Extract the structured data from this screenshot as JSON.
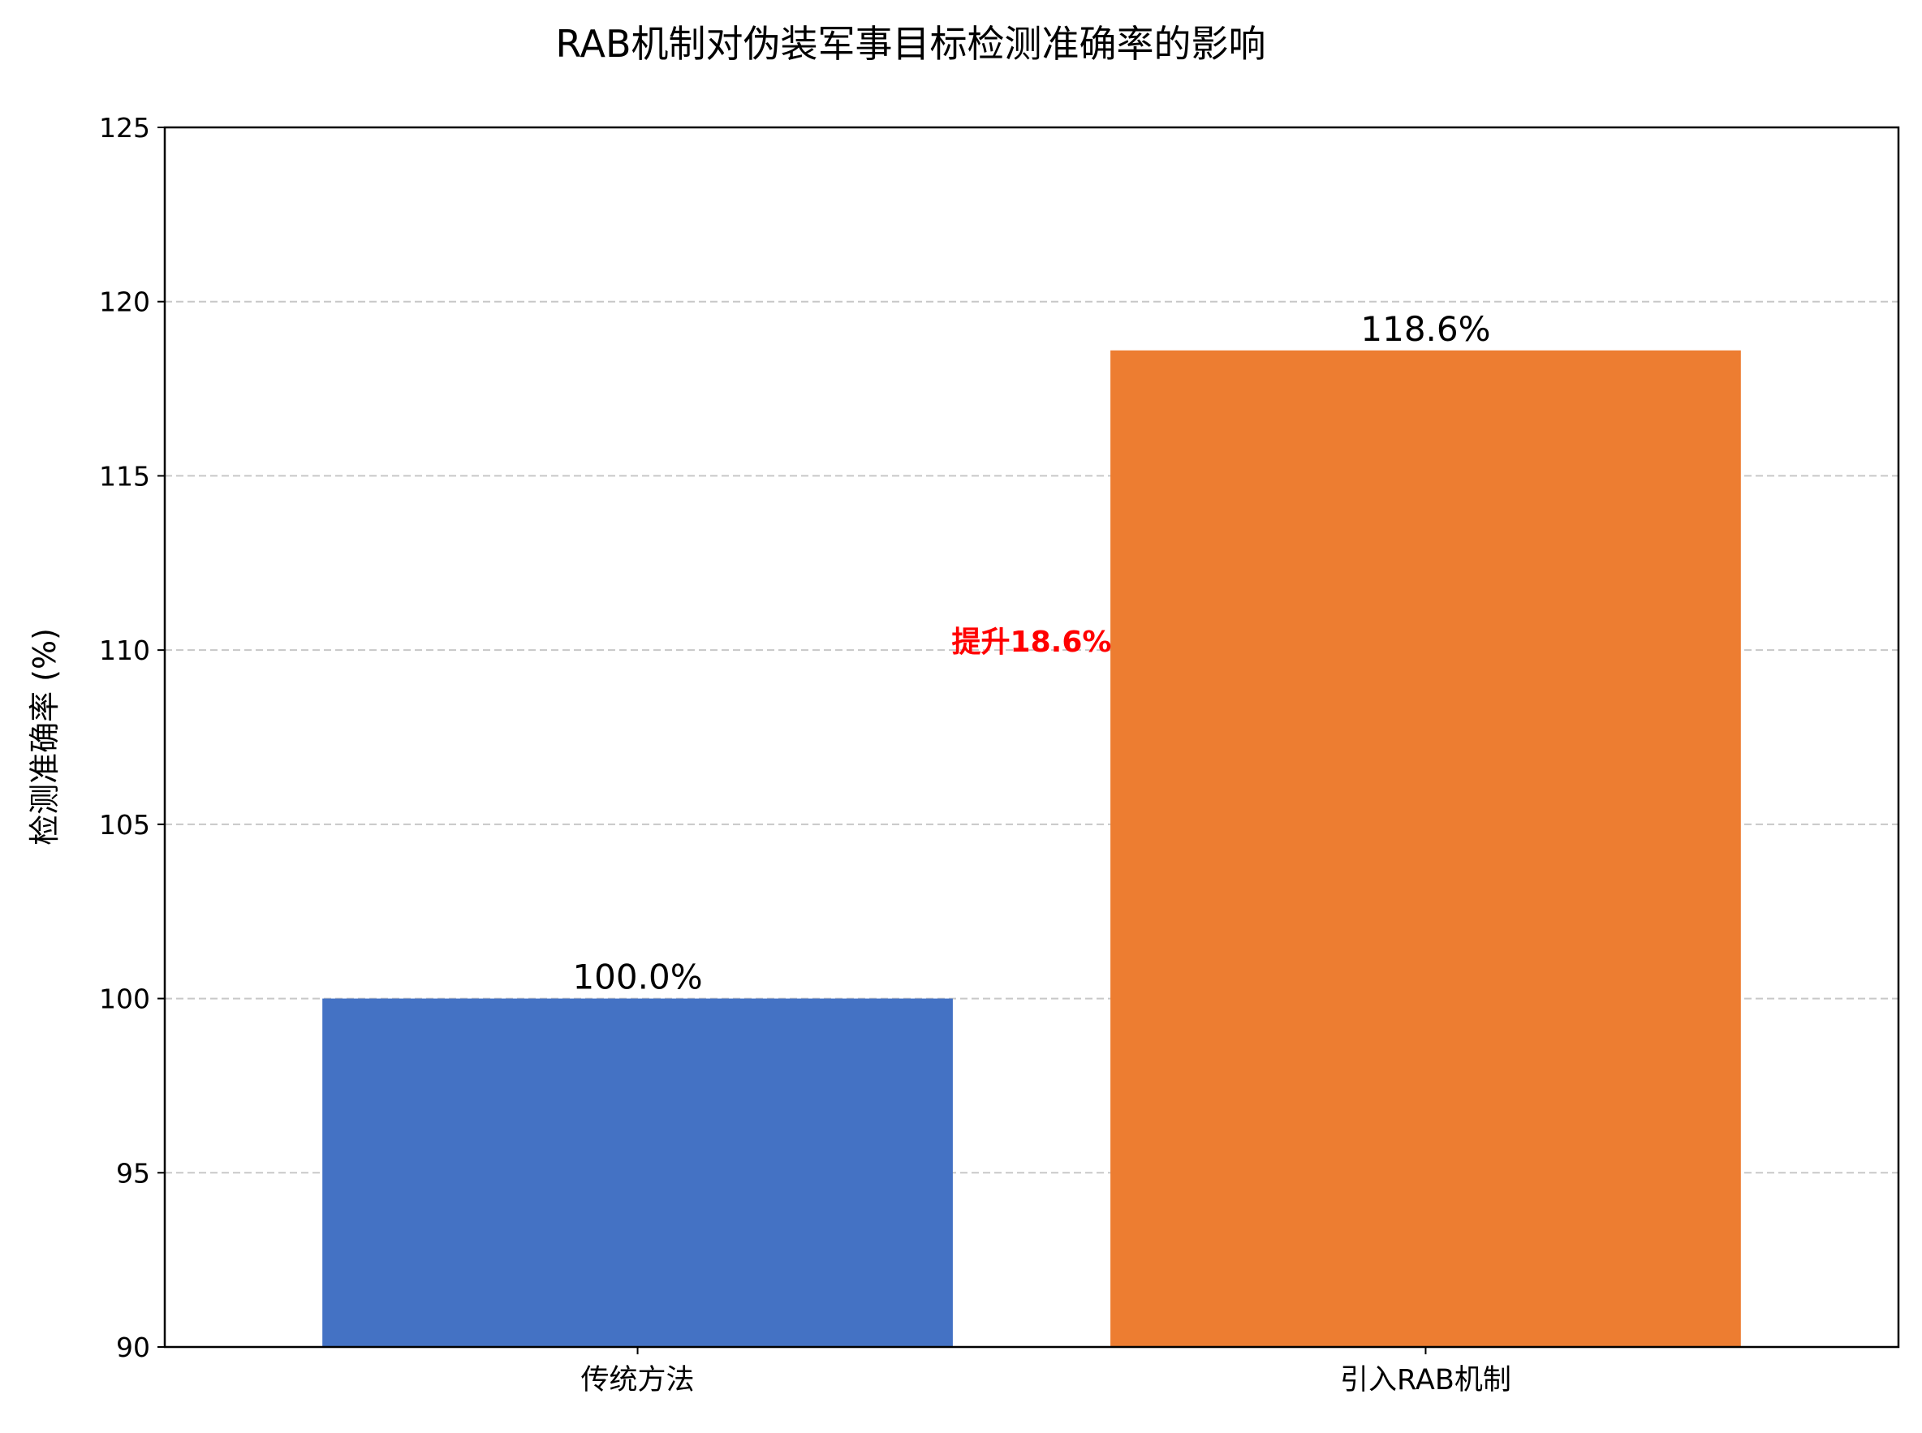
{
  "chart_data": {
    "type": "bar",
    "title": "RAB机制对伪装军事目标检测准确率的影响",
    "xlabel": "",
    "ylabel": "检测准确率 (%)",
    "categories": [
      "传统方法",
      "引入RAB机制"
    ],
    "values": [
      100.0,
      118.6
    ],
    "value_labels": [
      "100.0%",
      "118.6%"
    ],
    "colors": [
      "#4472C4",
      "#ED7D31"
    ],
    "ylim": [
      90,
      125
    ],
    "yticks": [
      "90",
      "95",
      "100",
      "105",
      "110",
      "115",
      "120",
      "125"
    ],
    "grid": "y-dashed",
    "annotation": {
      "text": "提升18.6%",
      "color": "#FF0000",
      "y": 110
    }
  }
}
